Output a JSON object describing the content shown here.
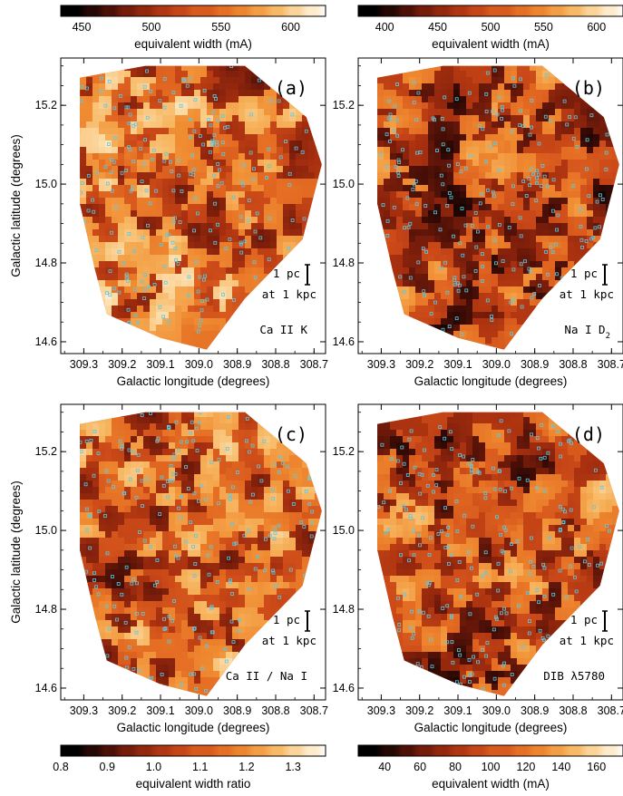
{
  "chart_data": [
    {
      "panel_label": "(a)",
      "type": "heatmap",
      "species_label": "Ca II K",
      "xlabel": "Galactic longitude (degrees)",
      "ylabel": "Galactic latitude (degrees)",
      "xlim": [
        309.36,
        308.67
      ],
      "ylim": [
        14.57,
        15.32
      ],
      "xticks": [
        "309.3",
        "309.2",
        "309.1",
        "309.0",
        "308.9",
        "308.8",
        "308.7"
      ],
      "yticks": [
        "14.6",
        "14.8",
        "15.0",
        "15.2"
      ],
      "scalebar": [
        "1 pc",
        "at 1 kpc"
      ],
      "colorbar": {
        "label": "equivalent width (mA)",
        "range": [
          435,
          625
        ],
        "ticks": [
          "450",
          "500",
          "550",
          "600"
        ]
      }
    },
    {
      "panel_label": "(b)",
      "type": "heatmap",
      "species_label": "Na I D",
      "species_sub": "2",
      "xlabel": "Galactic longitude (degrees)",
      "ylabel": "",
      "xlim": [
        309.36,
        308.67
      ],
      "ylim": [
        14.57,
        15.32
      ],
      "xticks": [
        "309.3",
        "309.2",
        "309.1",
        "309.0",
        "308.9",
        "308.8",
        "308.7"
      ],
      "yticks": [
        "14.6",
        "14.8",
        "15.0",
        "15.2"
      ],
      "scalebar": [
        "1 pc",
        "at 1 kpc"
      ],
      "colorbar": {
        "label": "equivalent width (mA)",
        "range": [
          375,
          625
        ],
        "ticks": [
          "400",
          "450",
          "500",
          "550",
          "600"
        ]
      }
    },
    {
      "panel_label": "(c)",
      "type": "heatmap",
      "species_label": "Ca II / Na I",
      "xlabel": "Galactic longitude (degrees)",
      "ylabel": "Galactic latitude (degrees)",
      "xlim": [
        309.36,
        308.67
      ],
      "ylim": [
        14.57,
        15.32
      ],
      "xticks": [
        "309.3",
        "309.2",
        "309.1",
        "309.0",
        "308.9",
        "308.8",
        "308.7"
      ],
      "yticks": [
        "14.6",
        "14.8",
        "15.0",
        "15.2"
      ],
      "scalebar": [
        "1 pc",
        "at 1 kpc"
      ],
      "colorbar": {
        "label": "equivalent width ratio",
        "range": [
          0.8,
          1.37
        ],
        "ticks": [
          "0.8",
          "0.9",
          "1.0",
          "1.1",
          "1.2",
          "1.3"
        ]
      }
    },
    {
      "panel_label": "(d)",
      "type": "heatmap",
      "species_label": "DIB λ5780",
      "xlabel": "Galactic longitude (degrees)",
      "ylabel": "",
      "xlim": [
        309.36,
        308.67
      ],
      "ylim": [
        14.57,
        15.32
      ],
      "xticks": [
        "309.3",
        "309.2",
        "309.1",
        "309.0",
        "308.9",
        "308.8",
        "308.7"
      ],
      "yticks": [
        "14.6",
        "14.8",
        "15.0",
        "15.2"
      ],
      "scalebar": [
        "1 pc",
        "at 1 kpc"
      ],
      "colorbar": {
        "label": "equivalent width (mA)",
        "range": [
          25,
          175
        ],
        "ticks": [
          "40",
          "60",
          "80",
          "100",
          "120",
          "140",
          "160"
        ]
      }
    }
  ],
  "colors": {
    "colormap": [
      "#000000",
      "#3a0b05",
      "#7a1d0b",
      "#a8300f",
      "#cc4a18",
      "#e36a22",
      "#f08c32",
      "#f7b660",
      "#fde0b0",
      "#ffffff"
    ],
    "star_marker": "#5fc8e0"
  }
}
